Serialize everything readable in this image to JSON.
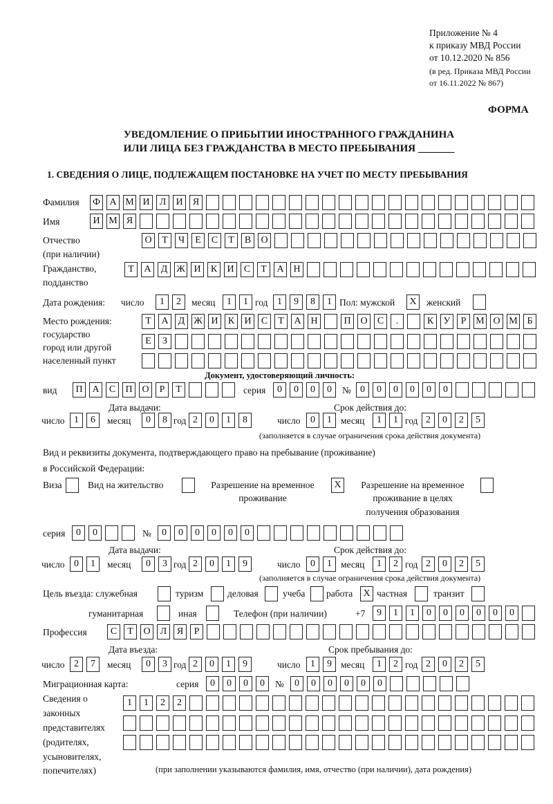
{
  "header": {
    "appendix": "Приложение № 4",
    "order": "к приказу МВД России",
    "order_date": "от 10.12.2020 № 856",
    "edition_1": "(в ред. Приказа МВД России",
    "edition_2": "от 16.11.2022 № 867)",
    "form_label": "ФОРМА",
    "title_1": "УВЕДОМЛЕНИЕ О ПРИБЫТИИ ИНОСТРАННОГО ГРАЖДАНИНА",
    "title_2": "ИЛИ ЛИЦА БЕЗ ГРАЖДАНСТВА В МЕСТО ПРЕБЫВАНИЯ _______",
    "section_1": "1. СВЕДЕНИЯ О ЛИЦЕ, ПОДЛЕЖАЩЕМ ПОСТАНОВКЕ НА УЧЕТ ПО МЕСТУ ПРЕБЫВАНИЯ"
  },
  "labels": {
    "surname": "Фамилия",
    "name": "Имя",
    "patronymic": "Отчество",
    "patronymic_note": "(при наличии)",
    "citizenship": "Гражданство,",
    "citizenship_2": "подданство",
    "birth_date": "Дата рождения:",
    "day": "число",
    "month": "месяц",
    "year": "год",
    "sex": "Пол: мужской",
    "female": "женский",
    "birthplace": "Место рождения:",
    "bp_state": "государство",
    "bp_city": "город или другой",
    "bp_settlement": "населенный пункт",
    "id_doc": "Документ, удостоверяющий личность:",
    "kind": "вид",
    "series": "серия",
    "number": "№",
    "issue_date": "Дата выдачи:",
    "valid_until": "Срок действия до:",
    "validity_note": "(заполняется в случае ограничения срока действия документа)",
    "permit_doc_1": "Вид и реквизиты документа, подтверждающего право на пребывание (проживание)",
    "permit_doc_2": "в Российской Федерации:",
    "visa": "Виза",
    "residence": "Вид на жительство",
    "trp_1": "Разрешение на временное",
    "trp_2": "проживание",
    "trpe_1": "Разрешение на временное",
    "trpe_2": "проживание в целях",
    "trpe_3": "получения образования",
    "purpose": "Цель въезда: служебная",
    "tourism": "туризм",
    "business": "деловая",
    "study": "учеба",
    "work": "работа",
    "private": "частная",
    "transit": "транзит",
    "humanitarian": "гуманитарная",
    "other": "иная",
    "phone": "Телефон (при наличии)",
    "phone_prefix": "+7",
    "profession": "Профессия",
    "entry_date": "Дата въезда:",
    "stay_until": "Срок пребывания до:",
    "migration_card": "Миграционная карта:",
    "reps_1": "Сведения о",
    "reps_2": "законных",
    "reps_3": "представителях",
    "reps_4": "(родителях,",
    "reps_5": "усыновителях,",
    "reps_6": "попечителях)",
    "reps_note": "(при заполнении указываются фамилия, имя, отчество (при наличии), дата рождения)"
  },
  "fields": {
    "surname": [
      "Ф",
      "А",
      "М",
      "И",
      "Л",
      "И",
      "Я",
      "",
      "",
      "",
      "",
      "",
      "",
      "",
      "",
      "",
      "",
      "",
      "",
      "",
      "",
      "",
      "",
      "",
      "",
      "",
      ""
    ],
    "name": [
      "И",
      "М",
      "Я",
      "",
      "",
      "",
      "",
      "",
      "",
      "",
      "",
      "",
      "",
      "",
      "",
      "",
      "",
      "",
      "",
      "",
      "",
      "",
      "",
      "",
      "",
      "",
      ""
    ],
    "patronymic": [
      "О",
      "Т",
      "Ч",
      "Е",
      "С",
      "Т",
      "В",
      "О",
      "",
      "",
      "",
      "",
      "",
      "",
      "",
      "",
      "",
      "",
      "",
      "",
      "",
      "",
      "",
      ""
    ],
    "citizenship": [
      "Т",
      "А",
      "Д",
      "Ж",
      "И",
      "К",
      "И",
      "С",
      "Т",
      "А",
      "Н",
      "",
      "",
      "",
      "",
      "",
      "",
      "",
      "",
      "",
      "",
      "",
      "",
      "",
      ""
    ],
    "birth_day": [
      "1",
      "2"
    ],
    "birth_month": [
      "1",
      "1"
    ],
    "birth_year": [
      "1",
      "9",
      "8",
      "1"
    ],
    "sex_male": [
      "X"
    ],
    "sex_female": [
      ""
    ],
    "birthplace_1": [
      "Т",
      "А",
      "Д",
      "Ж",
      "И",
      "К",
      "И",
      "С",
      "Т",
      "А",
      "Н",
      "",
      "П",
      "О",
      "С",
      ".",
      "",
      "К",
      "У",
      "Р",
      "М",
      "О",
      "М",
      "Б"
    ],
    "birthplace_2": [
      "Е",
      "З",
      "",
      "",
      "",
      "",
      "",
      "",
      "",
      "",
      "",
      "",
      "",
      "",
      "",
      "",
      "",
      "",
      "",
      "",
      "",
      "",
      "",
      ""
    ],
    "birthplace_3": [
      "",
      "",
      "",
      "",
      "",
      "",
      "",
      "",
      "",
      "",
      "",
      "",
      "",
      "",
      "",
      "",
      "",
      "",
      "",
      "",
      "",
      "",
      "",
      ""
    ],
    "id_kind": [
      "П",
      "А",
      "С",
      "П",
      "О",
      "Р",
      "Т",
      "",
      "",
      ""
    ],
    "id_series": [
      "0",
      "0",
      "0",
      "0"
    ],
    "id_number": [
      "0",
      "0",
      "0",
      "0",
      "0",
      "0",
      "",
      "",
      "",
      "",
      ""
    ],
    "id_issue_day": [
      "1",
      "6"
    ],
    "id_issue_month": [
      "0",
      "8"
    ],
    "id_issue_year": [
      "2",
      "0",
      "1",
      "8"
    ],
    "id_valid_day": [
      "0",
      "1"
    ],
    "id_valid_month": [
      "1",
      "1"
    ],
    "id_valid_year": [
      "2",
      "0",
      "2",
      "5"
    ],
    "permit_visa": [
      ""
    ],
    "permit_residence": [
      ""
    ],
    "permit_trp": [
      "X"
    ],
    "permit_trpe": [
      ""
    ],
    "permit_series": [
      "0",
      "0",
      "",
      ""
    ],
    "permit_number": [
      "0",
      "0",
      "0",
      "0",
      "0",
      "0",
      "",
      "",
      "",
      "",
      "",
      "",
      "",
      "",
      ""
    ],
    "permit_issue_day": [
      "0",
      "1"
    ],
    "permit_issue_month": [
      "0",
      "3"
    ],
    "permit_issue_year": [
      "2",
      "0",
      "1",
      "9"
    ],
    "permit_valid_day": [
      "0",
      "1"
    ],
    "permit_valid_month": [
      "1",
      "2"
    ],
    "permit_valid_year": [
      "2",
      "0",
      "2",
      "5"
    ],
    "purpose_official": [
      ""
    ],
    "purpose_tourism": [
      ""
    ],
    "purpose_business": [
      ""
    ],
    "purpose_study": [
      ""
    ],
    "purpose_work": [
      "X"
    ],
    "purpose_private": [
      ""
    ],
    "purpose_transit": [
      ""
    ],
    "purpose_humanitarian": [
      ""
    ],
    "purpose_other": [
      ""
    ],
    "phone": [
      "9",
      "1",
      "1",
      "0",
      "0",
      "0",
      "0",
      "0",
      "0",
      ""
    ],
    "profession": [
      "С",
      "Т",
      "О",
      "Л",
      "Я",
      "Р",
      "",
      "",
      "",
      "",
      "",
      "",
      "",
      "",
      "",
      "",
      "",
      "",
      "",
      "",
      "",
      "",
      "",
      "",
      "",
      ""
    ],
    "entry_day": [
      "2",
      "7"
    ],
    "entry_month": [
      "0",
      "3"
    ],
    "entry_year": [
      "2",
      "0",
      "1",
      "9"
    ],
    "stay_day": [
      "1",
      "9"
    ],
    "stay_month": [
      "1",
      "2"
    ],
    "stay_year": [
      "2",
      "0",
      "2",
      "5"
    ],
    "mc_series": [
      "0",
      "0",
      "0",
      "0"
    ],
    "mc_number": [
      "0",
      "0",
      "0",
      "0",
      "0",
      "0",
      "",
      "",
      "",
      "",
      ""
    ],
    "reps_1": [
      "1",
      "1",
      "2",
      "2",
      "",
      "",
      "",
      "",
      "",
      "",
      "",
      "",
      "",
      "",
      "",
      "",
      "",
      "",
      "",
      "",
      "",
      "",
      "",
      "",
      ""
    ],
    "reps_2": [
      "",
      "",
      "",
      "",
      "",
      "",
      "",
      "",
      "",
      "",
      "",
      "",
      "",
      "",
      "",
      "",
      "",
      "",
      "",
      "",
      "",
      "",
      "",
      "",
      ""
    ],
    "reps_3": [
      "",
      "",
      "",
      "",
      "",
      "",
      "",
      "",
      "",
      "",
      "",
      "",
      "",
      "",
      "",
      "",
      "",
      "",
      "",
      "",
      "",
      "",
      "",
      "",
      ""
    ]
  }
}
